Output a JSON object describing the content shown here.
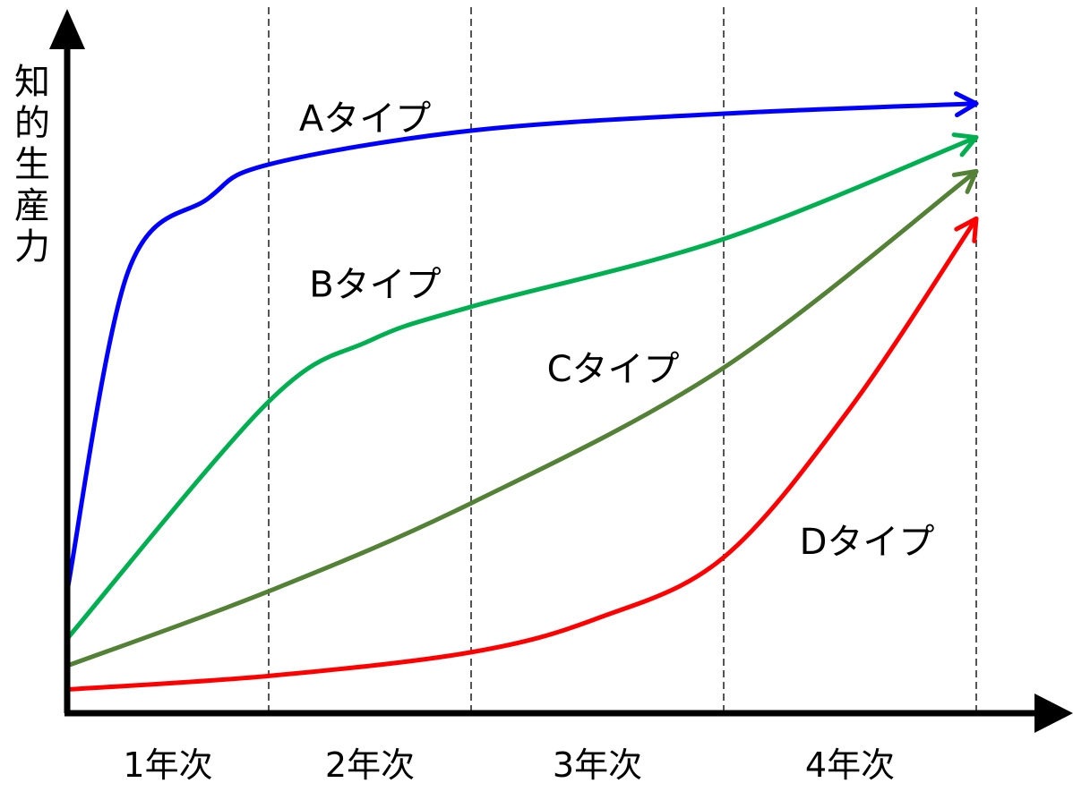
{
  "chart_data": {
    "type": "line",
    "ylabel": "知的生産力",
    "categories": [
      "1年次",
      "2年次",
      "3年次",
      "4年次"
    ],
    "grid": "vertical dashed dividers between years",
    "legend": "inline labels next to curves",
    "series": [
      {
        "name": "Aタイプ",
        "color": "#0000ff",
        "points": [
          [
            0.0,
            0.18
          ],
          [
            0.3,
            0.65
          ],
          [
            0.7,
            0.76
          ],
          [
            1.0,
            0.81
          ],
          [
            2.0,
            0.86
          ],
          [
            3.0,
            0.885
          ],
          [
            4.0,
            0.9
          ]
        ]
      },
      {
        "name": "Bタイプ",
        "color": "#00b050",
        "points": [
          [
            0.0,
            0.11
          ],
          [
            1.0,
            0.46
          ],
          [
            1.5,
            0.55
          ],
          [
            2.0,
            0.6
          ],
          [
            3.0,
            0.7
          ],
          [
            4.0,
            0.85
          ]
        ]
      },
      {
        "name": "Cタイプ",
        "color": "#538135",
        "points": [
          [
            0.0,
            0.07
          ],
          [
            1.0,
            0.18
          ],
          [
            2.0,
            0.31
          ],
          [
            3.0,
            0.51
          ],
          [
            4.0,
            0.8
          ]
        ]
      },
      {
        "name": "Dタイプ",
        "color": "#ff0000",
        "points": [
          [
            0.0,
            0.035
          ],
          [
            1.0,
            0.055
          ],
          [
            2.0,
            0.09
          ],
          [
            2.5,
            0.14
          ],
          [
            3.0,
            0.23
          ],
          [
            3.5,
            0.45
          ],
          [
            4.0,
            0.73
          ]
        ]
      }
    ]
  }
}
